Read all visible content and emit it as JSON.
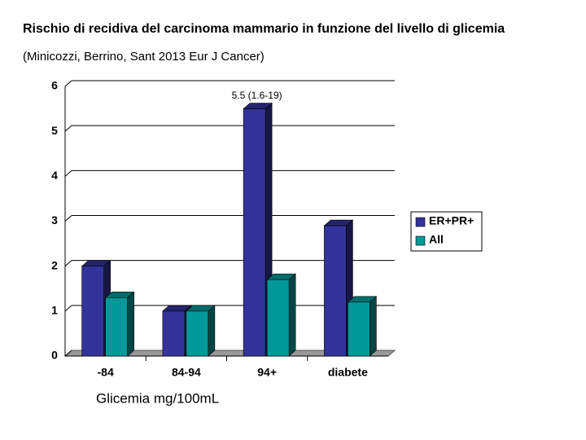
{
  "chart_data": {
    "type": "bar3d",
    "title": "Rischio di recidiva del carcinoma mammario in funzione del livello di glicemia",
    "subtitle": "(Minicozzi, Berrino, Sant 2013 Eur J Cancer)",
    "x_label": "Glicemia mg/100mL",
    "annotation": "5.5 (1.6-19)",
    "categories": [
      "-84",
      "84-94",
      "94+",
      "diabete"
    ],
    "series": [
      {
        "name": "ER+PR+",
        "color": "#333399",
        "values": [
          2.0,
          1.0,
          5.5,
          2.9
        ]
      },
      {
        "name": "All",
        "color": "#009999",
        "values": [
          1.3,
          1.0,
          1.7,
          1.2
        ]
      }
    ],
    "ylim": [
      0,
      6
    ],
    "yticks": [
      0,
      1,
      2,
      3,
      4,
      5,
      6
    ],
    "grid": true,
    "legend": "right"
  }
}
